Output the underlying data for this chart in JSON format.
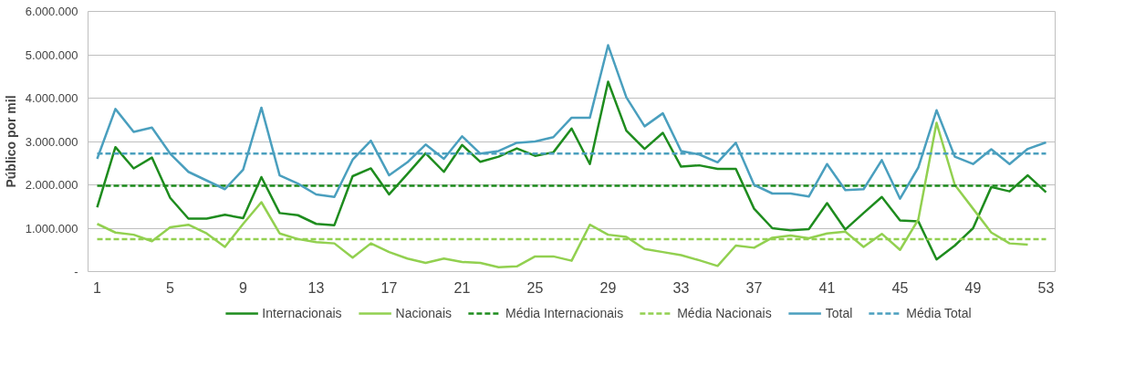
{
  "chart_data": {
    "type": "line",
    "ylabel": "Público por mil",
    "x": [
      1,
      2,
      3,
      4,
      5,
      6,
      7,
      8,
      9,
      10,
      11,
      12,
      13,
      14,
      15,
      16,
      17,
      18,
      19,
      20,
      21,
      22,
      23,
      24,
      25,
      26,
      27,
      28,
      29,
      30,
      31,
      32,
      33,
      34,
      35,
      36,
      37,
      38,
      39,
      40,
      41,
      42,
      43,
      44,
      45,
      46,
      47,
      48,
      49,
      50,
      51,
      52,
      53
    ],
    "xlim": [
      0.5,
      53.5
    ],
    "xticks": [
      1,
      5,
      9,
      13,
      17,
      21,
      25,
      29,
      33,
      37,
      41,
      45,
      49,
      53
    ],
    "ylim": [
      0,
      6000000
    ],
    "yticks": [
      {
        "value": 0,
        "label": "-"
      },
      {
        "value": 1000000,
        "label": "1.000.000"
      },
      {
        "value": 2000000,
        "label": "2.000.000"
      },
      {
        "value": 3000000,
        "label": "3.000.000"
      },
      {
        "value": 4000000,
        "label": "4.000.000"
      },
      {
        "value": 5000000,
        "label": "5.000.000"
      },
      {
        "value": 6000000,
        "label": "6.000.000"
      }
    ],
    "grid": "y",
    "legend": "bottom",
    "marker": "none",
    "series": [
      {
        "name": "Internacionais",
        "color": "#1e8c1e",
        "line_style": "solid",
        "values": [
          1480000,
          2870000,
          2380000,
          2630000,
          1700000,
          1220000,
          1220000,
          1310000,
          1230000,
          2180000,
          1350000,
          1300000,
          1100000,
          1070000,
          2200000,
          2380000,
          1780000,
          2250000,
          2730000,
          2300000,
          2920000,
          2530000,
          2650000,
          2840000,
          2670000,
          2750000,
          3300000,
          2480000,
          4380000,
          3250000,
          2830000,
          3200000,
          2420000,
          2450000,
          2370000,
          2370000,
          1450000,
          1000000,
          950000,
          980000,
          1580000,
          970000,
          1350000,
          1720000,
          1180000,
          1160000,
          280000,
          600000,
          1000000,
          1950000,
          1850000,
          2220000,
          1830000
        ]
      },
      {
        "name": "Nacionais",
        "color": "#92d050",
        "line_style": "solid",
        "values": [
          1100000,
          900000,
          850000,
          700000,
          1020000,
          1080000,
          880000,
          570000,
          1100000,
          1600000,
          880000,
          750000,
          680000,
          650000,
          320000,
          650000,
          450000,
          300000,
          200000,
          300000,
          220000,
          200000,
          100000,
          120000,
          350000,
          350000,
          250000,
          1080000,
          850000,
          800000,
          520000,
          450000,
          380000,
          260000,
          130000,
          600000,
          550000,
          780000,
          830000,
          770000,
          880000,
          920000,
          570000,
          870000,
          500000,
          1200000,
          3430000,
          2000000,
          1450000,
          900000,
          650000,
          620000,
          null
        ]
      },
      {
        "name": "Média Internacionais",
        "color": "#1e8c1e",
        "line_style": "dashed",
        "values": [
          1980000,
          1980000,
          1980000,
          1980000,
          1980000,
          1980000,
          1980000,
          1980000,
          1980000,
          1980000,
          1980000,
          1980000,
          1980000,
          1980000,
          1980000,
          1980000,
          1980000,
          1980000,
          1980000,
          1980000,
          1980000,
          1980000,
          1980000,
          1980000,
          1980000,
          1980000,
          1980000,
          1980000,
          1980000,
          1980000,
          1980000,
          1980000,
          1980000,
          1980000,
          1980000,
          1980000,
          1980000,
          1980000,
          1980000,
          1980000,
          1980000,
          1980000,
          1980000,
          1980000,
          1980000,
          1980000,
          1980000,
          1980000,
          1980000,
          1980000,
          1980000,
          1980000,
          1980000
        ]
      },
      {
        "name": "Média Nacionais",
        "color": "#92d050",
        "line_style": "dashed",
        "values": [
          750000,
          750000,
          750000,
          750000,
          750000,
          750000,
          750000,
          750000,
          750000,
          750000,
          750000,
          750000,
          750000,
          750000,
          750000,
          750000,
          750000,
          750000,
          750000,
          750000,
          750000,
          750000,
          750000,
          750000,
          750000,
          750000,
          750000,
          750000,
          750000,
          750000,
          750000,
          750000,
          750000,
          750000,
          750000,
          750000,
          750000,
          750000,
          750000,
          750000,
          750000,
          750000,
          750000,
          750000,
          750000,
          750000,
          750000,
          750000,
          750000,
          750000,
          750000,
          750000,
          750000
        ]
      },
      {
        "name": "Total",
        "color": "#4a9fbe",
        "line_style": "solid",
        "values": [
          2600000,
          3750000,
          3220000,
          3320000,
          2720000,
          2300000,
          2100000,
          1900000,
          2350000,
          3780000,
          2220000,
          2030000,
          1780000,
          1720000,
          2580000,
          3020000,
          2220000,
          2520000,
          2930000,
          2600000,
          3120000,
          2720000,
          2780000,
          2970000,
          3000000,
          3100000,
          3550000,
          3550000,
          5220000,
          4020000,
          3350000,
          3650000,
          2780000,
          2700000,
          2520000,
          2970000,
          2000000,
          1800000,
          1800000,
          1730000,
          2480000,
          1880000,
          1900000,
          2570000,
          1680000,
          2400000,
          3720000,
          2650000,
          2480000,
          2820000,
          2480000,
          2830000,
          2980000
        ]
      },
      {
        "name": "Média Total",
        "color": "#4a9fbe",
        "line_style": "dashed",
        "values": [
          2720000,
          2720000,
          2720000,
          2720000,
          2720000,
          2720000,
          2720000,
          2720000,
          2720000,
          2720000,
          2720000,
          2720000,
          2720000,
          2720000,
          2720000,
          2720000,
          2720000,
          2720000,
          2720000,
          2720000,
          2720000,
          2720000,
          2720000,
          2720000,
          2720000,
          2720000,
          2720000,
          2720000,
          2720000,
          2720000,
          2720000,
          2720000,
          2720000,
          2720000,
          2720000,
          2720000,
          2720000,
          2720000,
          2720000,
          2720000,
          2720000,
          2720000,
          2720000,
          2720000,
          2720000,
          2720000,
          2720000,
          2720000,
          2720000,
          2720000,
          2720000,
          2720000,
          2720000
        ]
      }
    ]
  }
}
